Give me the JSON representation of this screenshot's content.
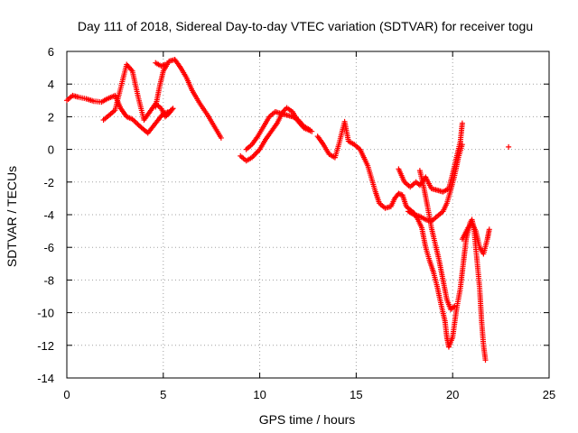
{
  "chart_data": {
    "type": "scatter",
    "title": "Day 111 of 2018, Sidereal Day-to-day VTEC variation (SDTVAR) for receiver togu",
    "xlabel": "GPS time / hours",
    "ylabel": "SDTVAR / TECUs",
    "xlim": [
      0,
      25
    ],
    "ylim": [
      -14,
      6
    ],
    "xticks": [
      0,
      5,
      10,
      15,
      20,
      25
    ],
    "yticks": [
      6,
      4,
      2,
      0,
      -2,
      -4,
      -6,
      -8,
      -10,
      -12,
      -14
    ],
    "grid": true,
    "marker": "plus",
    "color": "#ff0000",
    "series": [
      {
        "points": [
          [
            0,
            3.0
          ],
          [
            0.3,
            3.3
          ],
          [
            0.6,
            3.2
          ],
          [
            1.0,
            3.1
          ],
          [
            1.4,
            2.95
          ],
          [
            1.8,
            2.9
          ],
          [
            2.1,
            3.1
          ],
          [
            2.5,
            3.3
          ],
          [
            2.8,
            2.5
          ],
          [
            3.1,
            2.0
          ],
          [
            3.4,
            1.85
          ],
          [
            3.8,
            1.4
          ],
          [
            4.2,
            1.0
          ],
          [
            4.6,
            1.6
          ],
          [
            5.0,
            2.2
          ],
          [
            5.3,
            2.3
          ],
          [
            5.5,
            2.5
          ]
        ]
      },
      {
        "points": [
          [
            1.9,
            1.8
          ],
          [
            2.2,
            2.1
          ],
          [
            2.5,
            2.4
          ],
          [
            2.8,
            3.8
          ],
          [
            3.1,
            5.2
          ],
          [
            3.4,
            4.8
          ],
          [
            3.7,
            3.2
          ],
          [
            4.0,
            1.8
          ],
          [
            4.3,
            2.3
          ],
          [
            4.6,
            2.8
          ],
          [
            4.9,
            2.5
          ],
          [
            5.1,
            2.0
          ],
          [
            5.3,
            2.2
          ],
          [
            5.5,
            2.5
          ]
        ]
      },
      {
        "points": [
          [
            4.6,
            2.6
          ],
          [
            4.8,
            3.8
          ],
          [
            5.0,
            4.8
          ],
          [
            5.3,
            5.4
          ],
          [
            5.6,
            5.5
          ],
          [
            5.9,
            5.0
          ],
          [
            6.2,
            4.4
          ],
          [
            6.5,
            3.6
          ],
          [
            6.9,
            2.8
          ],
          [
            7.3,
            2.1
          ],
          [
            7.7,
            1.3
          ],
          [
            8.0,
            0.7
          ]
        ]
      },
      {
        "points": [
          [
            4.6,
            5.3
          ],
          [
            4.9,
            5.1
          ],
          [
            5.1,
            5.2
          ]
        ]
      },
      {
        "points": [
          [
            9.0,
            -0.4
          ],
          [
            9.3,
            -0.7
          ],
          [
            9.6,
            -0.5
          ],
          [
            10.0,
            0.0
          ],
          [
            10.3,
            0.6
          ],
          [
            10.6,
            1.1
          ],
          [
            10.9,
            1.6
          ],
          [
            11.2,
            2.3
          ],
          [
            11.4,
            2.55
          ],
          [
            11.7,
            2.3
          ],
          [
            12.0,
            1.7
          ],
          [
            12.3,
            1.3
          ],
          [
            12.7,
            1.1
          ]
        ]
      },
      {
        "points": [
          [
            9.3,
            0.0
          ],
          [
            9.6,
            0.3
          ],
          [
            9.9,
            0.8
          ],
          [
            10.2,
            1.4
          ],
          [
            10.5,
            2.0
          ],
          [
            10.8,
            2.3
          ],
          [
            11.1,
            2.2
          ],
          [
            11.4,
            2.1
          ],
          [
            11.7,
            2.0
          ],
          [
            12.0,
            1.8
          ],
          [
            12.3,
            1.4
          ],
          [
            12.6,
            1.2
          ]
        ]
      },
      {
        "points": [
          [
            13.0,
            0.8
          ],
          [
            13.3,
            0.3
          ],
          [
            13.6,
            -0.3
          ],
          [
            13.9,
            -0.5
          ],
          [
            14.1,
            0.3
          ],
          [
            14.4,
            1.7
          ],
          [
            14.6,
            0.5
          ],
          [
            14.9,
            0.3
          ],
          [
            15.2,
            0.0
          ],
          [
            15.4,
            -0.5
          ],
          [
            15.6,
            -1.0
          ],
          [
            15.8,
            -1.8
          ],
          [
            16.0,
            -2.6
          ],
          [
            16.2,
            -3.3
          ],
          [
            16.5,
            -3.6
          ],
          [
            16.8,
            -3.5
          ],
          [
            17.0,
            -3.0
          ],
          [
            17.2,
            -2.7
          ],
          [
            17.4,
            -2.8
          ],
          [
            17.6,
            -3.5
          ],
          [
            17.8,
            -3.7
          ],
          [
            18.0,
            -3.9
          ],
          [
            18.2,
            -4.3
          ],
          [
            18.4,
            -4.8
          ],
          [
            18.6,
            -6.0
          ],
          [
            18.8,
            -6.8
          ],
          [
            19.0,
            -7.5
          ],
          [
            19.2,
            -8.4
          ],
          [
            19.4,
            -9.5
          ],
          [
            19.6,
            -10.5
          ],
          [
            19.7,
            -11.5
          ],
          [
            19.8,
            -12.1
          ],
          [
            20.0,
            -11.5
          ],
          [
            20.2,
            -9.8
          ],
          [
            20.4,
            -8.5
          ],
          [
            20.5,
            -7.5
          ],
          [
            20.6,
            -6.5
          ],
          [
            20.7,
            -5.5
          ],
          [
            20.9,
            -4.5
          ],
          [
            21.0,
            -4.3
          ],
          [
            21.1,
            -4.8
          ],
          [
            21.2,
            -6.0
          ],
          [
            21.4,
            -8.5
          ],
          [
            21.5,
            -10.5
          ],
          [
            21.6,
            -12.0
          ],
          [
            21.7,
            -12.9
          ]
        ]
      },
      {
        "points": [
          [
            17.2,
            -1.2
          ],
          [
            17.5,
            -2.0
          ],
          [
            17.8,
            -2.3
          ],
          [
            18.1,
            -2.0
          ],
          [
            18.3,
            -2.2
          ],
          [
            18.6,
            -1.7
          ],
          [
            18.9,
            -2.4
          ],
          [
            19.2,
            -2.5
          ],
          [
            19.5,
            -2.6
          ],
          [
            19.8,
            -2.4
          ],
          [
            20.0,
            -1.5
          ],
          [
            20.2,
            -0.5
          ],
          [
            20.4,
            0.5
          ],
          [
            20.5,
            1.6
          ]
        ]
      },
      {
        "points": [
          [
            17.7,
            -3.8
          ],
          [
            18.0,
            -4.0
          ],
          [
            18.3,
            -4.1
          ],
          [
            18.6,
            -4.3
          ],
          [
            18.9,
            -4.4
          ],
          [
            19.2,
            -4.1
          ],
          [
            19.5,
            -3.8
          ],
          [
            19.7,
            -3.3
          ],
          [
            19.9,
            -2.5
          ],
          [
            20.1,
            -1.6
          ],
          [
            20.3,
            -0.5
          ],
          [
            20.5,
            0.3
          ]
        ]
      },
      {
        "points": [
          [
            18.3,
            -1.3
          ],
          [
            18.5,
            -2.3
          ],
          [
            18.7,
            -3.5
          ],
          [
            18.9,
            -4.8
          ],
          [
            19.1,
            -5.8
          ],
          [
            19.3,
            -6.8
          ],
          [
            19.5,
            -8.0
          ],
          [
            19.7,
            -9.2
          ],
          [
            19.9,
            -9.8
          ],
          [
            20.1,
            -9.6
          ]
        ]
      },
      {
        "points": [
          [
            20.5,
            -5.5
          ],
          [
            20.8,
            -4.8
          ],
          [
            21.0,
            -4.5
          ],
          [
            21.2,
            -5.0
          ],
          [
            21.4,
            -6.0
          ],
          [
            21.6,
            -6.4
          ],
          [
            21.8,
            -5.5
          ],
          [
            21.9,
            -4.9
          ]
        ]
      },
      {
        "points": [
          [
            22.9,
            0.15
          ]
        ]
      }
    ]
  }
}
